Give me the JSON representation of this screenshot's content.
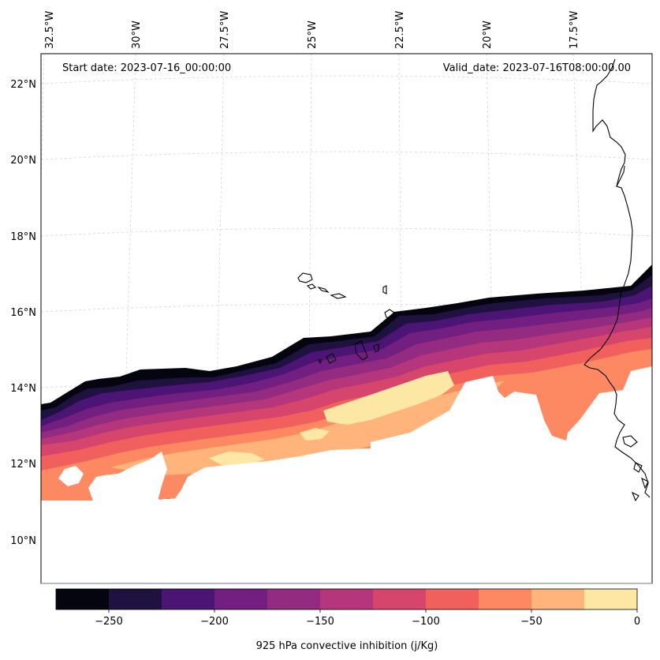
{
  "annotations": {
    "start_date": "Start date: 2023-07-16_00:00:00",
    "valid_date": "Valid_date: 2023-07-16T08:00:00.00"
  },
  "longitude_labels": [
    "32.5°W",
    "30°W",
    "27.5°W",
    "25°W",
    "22.5°W",
    "20°W",
    "17.5°W"
  ],
  "latitude_labels": [
    "22°N",
    "20°N",
    "18°N",
    "16°N",
    "14°N",
    "12°N",
    "10°N"
  ],
  "colorbar": {
    "label": "925 hPa convective inhibition (j/Kg)",
    "ticks": [
      "−250",
      "−200",
      "−150",
      "−100",
      "−50",
      "0"
    ],
    "tick_values": [
      -250,
      -200,
      -150,
      -100,
      -50,
      0
    ],
    "levels": [
      -275,
      -250,
      -225,
      -200,
      -175,
      -150,
      -125,
      -100,
      -75,
      -50,
      -25,
      0
    ],
    "colors": [
      "#05050f",
      "#1f1140",
      "#4c1474",
      "#721f81",
      "#932b80",
      "#b5367a",
      "#d6456c",
      "#f1605d",
      "#fc8961",
      "#feb47b",
      "#fde7a4"
    ]
  },
  "map": {
    "projection": "conic",
    "lon_range": [
      "33°W",
      "15.5°W"
    ],
    "lat_range": [
      "9°N",
      "22.8°N"
    ],
    "gridlines": true,
    "coastline_color": "#000000",
    "gridline_color": "#cccccc"
  }
}
